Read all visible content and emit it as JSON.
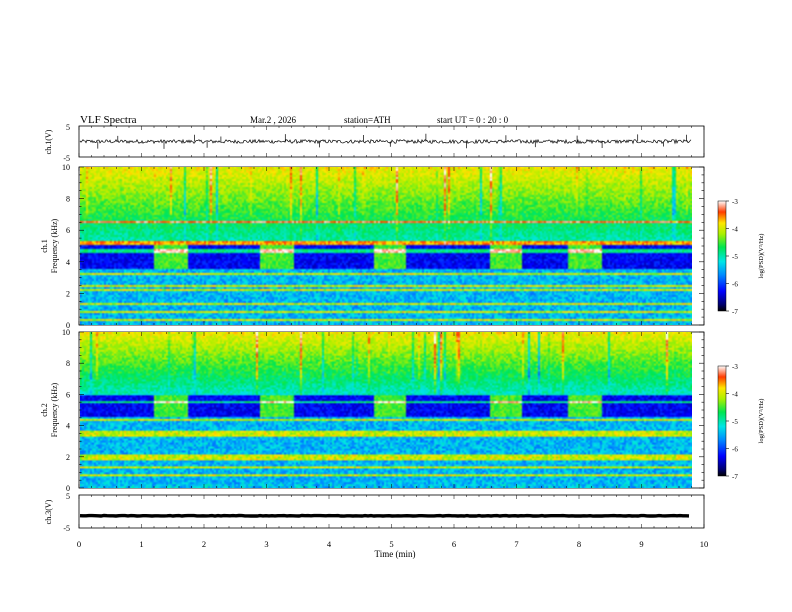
{
  "header": {
    "title": "VLF  Spectra",
    "date": "Mar.2   , 2026",
    "station": "station=ATH",
    "start": "start  UT  =    0  : 20 : 0"
  },
  "chart_data": [
    {
      "type": "line",
      "name": "ch1-waveform",
      "ylabel": "ch.1(V)",
      "ylim": [
        -5,
        5
      ],
      "yticks": [
        "5",
        "-5"
      ],
      "xlim": [
        0,
        9.8
      ],
      "baseline": 0,
      "noise_amplitude": 0.6,
      "spikes": [
        {
          "t": 0.3,
          "v": -2.3
        },
        {
          "t": 0.62,
          "v": 1.8
        },
        {
          "t": 1.36,
          "v": -2.4
        },
        {
          "t": 1.85,
          "v": 2.2
        },
        {
          "t": 2.05,
          "v": -2.0
        },
        {
          "t": 2.27,
          "v": 1.6
        },
        {
          "t": 3.3,
          "v": 2.4
        },
        {
          "t": 3.85,
          "v": -1.9
        },
        {
          "t": 4.55,
          "v": 2.1
        },
        {
          "t": 4.98,
          "v": -1.7
        },
        {
          "t": 5.55,
          "v": 2.5
        },
        {
          "t": 6.2,
          "v": -2.2
        },
        {
          "t": 6.83,
          "v": 2.0
        },
        {
          "t": 7.3,
          "v": -1.8
        },
        {
          "t": 7.97,
          "v": 1.9
        },
        {
          "t": 8.37,
          "v": -2.1
        },
        {
          "t": 8.94,
          "v": 2.3
        },
        {
          "t": 9.35,
          "v": -1.6
        },
        {
          "t": 9.72,
          "v": 2.2
        }
      ]
    },
    {
      "type": "heatmap",
      "name": "ch1-spectrogram",
      "ylabel": "ch.1\nFrequency (kHz)",
      "xlim": [
        0,
        9.8
      ],
      "ylim": [
        0,
        10
      ],
      "yticks": [
        0,
        2,
        4,
        6,
        8,
        10
      ],
      "colorbar": {
        "label": "log(PSD)(V²/Hz)",
        "range": [
          -7,
          -3
        ],
        "ticks": [
          "-3",
          "-4",
          "-5",
          "-6",
          "-7"
        ]
      },
      "quiet_band_khz": [
        3.5,
        5.0
      ],
      "bright_intervals_min": [
        [
          1.17,
          1.73
        ],
        [
          2.87,
          3.43
        ],
        [
          4.7,
          5.22
        ],
        [
          6.58,
          7.08
        ],
        [
          7.82,
          8.35
        ]
      ],
      "transmitter_lines_khz": [
        0.3,
        0.8,
        1.3,
        2.2,
        2.5,
        3.2,
        4.7,
        5.2,
        6.5
      ]
    },
    {
      "type": "heatmap",
      "name": "ch2-spectrogram",
      "ylabel": "ch.2\nFrequency (kHz)",
      "xlim": [
        0,
        9.8
      ],
      "ylim": [
        0,
        10
      ],
      "yticks": [
        0,
        2,
        4,
        6,
        8,
        10
      ],
      "colorbar": {
        "label": "log(PSD)(V²/Hz)",
        "range": [
          -7,
          -3
        ],
        "ticks": [
          "-3",
          "-4",
          "-5",
          "-6",
          "-7"
        ]
      },
      "quiet_band_khz": [
        4.5,
        6.0
      ],
      "bright_intervals_min": [
        [
          1.17,
          1.73
        ],
        [
          2.87,
          3.43
        ],
        [
          4.7,
          5.22
        ],
        [
          6.58,
          7.08
        ],
        [
          7.82,
          8.35
        ]
      ],
      "transmitter_lines_khz": [
        0.8,
        1.3,
        1.8,
        2.0,
        3.4,
        3.6,
        4.4,
        5.5
      ]
    },
    {
      "type": "line",
      "name": "ch3-waveform",
      "ylabel": "ch.3(V)",
      "ylim": [
        -5,
        5
      ],
      "yticks": [
        "5",
        "-5"
      ],
      "xlim": [
        0,
        9.8
      ],
      "baseline": -1.3,
      "noise_amplitude": 0.08
    }
  ],
  "xaxis": {
    "label": "Time  (min)",
    "range": [
      0,
      10
    ],
    "ticks": [
      "0",
      "1",
      "2",
      "3",
      "4",
      "5",
      "6",
      "7",
      "8",
      "9",
      "10"
    ]
  }
}
